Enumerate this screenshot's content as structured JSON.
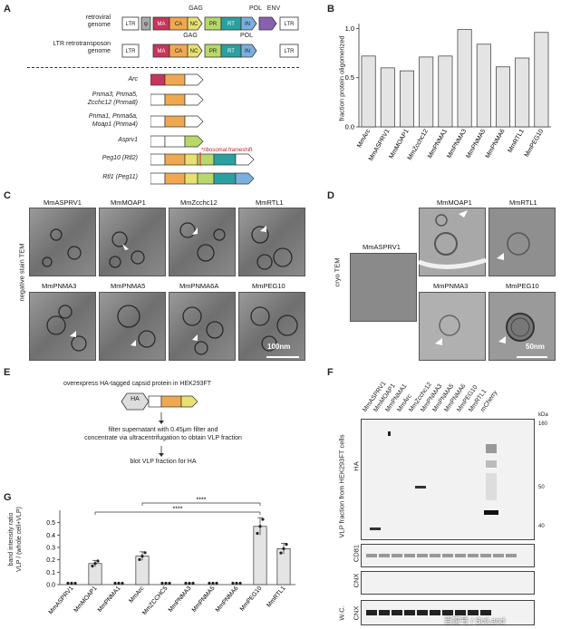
{
  "panels": {
    "A": {
      "letter": "A",
      "retroviral_label": [
        "retroviral",
        "genome"
      ],
      "ltr_label": [
        "LTR retrotransposon",
        "genome"
      ],
      "gag": "GAG",
      "pol": "POL",
      "env": "ENV",
      "ltr": "LTR",
      "psi": "ψ",
      "domains": {
        "ma": "MA",
        "ca": "CA",
        "nc": "NC",
        "pr": "PR",
        "rt": "RT",
        "in": "IN"
      },
      "genes": [
        "Arc",
        "Pnma3, Pnma5,",
        "Zcchc12 (Pnma8)",
        "Pnma1, Pnma6a,",
        "Moap1 (Pnma4)",
        "Asprv1",
        "Peg10 (Rtl2)",
        "Rtl1 (Peg11)"
      ],
      "frameshift": "ribosomal frameshift"
    },
    "B": {
      "letter": "B",
      "ylabel": "fraction protein oligomerized",
      "yticks": [
        "0.0",
        "0.5",
        "1.0"
      ]
    },
    "C": {
      "letter": "C",
      "side_label": "negative stain TEM",
      "images": [
        "MmASPRV1",
        "MmMOAP1",
        "MmZcchc12",
        "MmRTL1",
        "MmPNMA3",
        "MmPNMA5",
        "MmPNMA6A",
        "MmPEG10"
      ],
      "scale": "100nm"
    },
    "D": {
      "letter": "D",
      "side_label": "cryo TEM",
      "images": [
        "MmASPRV1",
        "MmMOAP1",
        "MmRTL1",
        "MmPNMA3",
        "MmPEG10"
      ],
      "scale": "50nm"
    },
    "E": {
      "letter": "E",
      "step1": "overexpress HA-tagged capsid protein in HEK293FT",
      "ha": "HA",
      "step2": [
        "filter supernatant with 0.45μm filter and",
        "concentrate via ultracentrifugation to obtain VLP fraction"
      ],
      "step3": "blot VLP fraction for HA"
    },
    "F": {
      "letter": "F",
      "lanes": [
        "MmASPRV1",
        "MmMOAP1",
        "MmPNMA1",
        "MmArc",
        "MmZcchc12",
        "MmPNMA3",
        "MmPNMA5",
        "MmPNMA6",
        "MmPEG10",
        "MmRTL1",
        "mCherry"
      ],
      "kda": "kDa",
      "markers": [
        "160",
        "50",
        "40"
      ],
      "side_label": "VLP fraction from HEK293FT cells",
      "ha": "HA",
      "cd81": "CD81",
      "cnx": "CNX",
      "wc": "W.C.",
      "cnx2": "CNX"
    },
    "G": {
      "letter": "G",
      "ylabel": [
        "band intensity ratio",
        "VLP / (whole cell+VLP)"
      ],
      "yticks": [
        "0.0",
        "0.1",
        "0.2",
        "0.3",
        "0.4",
        "0.5"
      ],
      "sig1": "****",
      "sig2": "****"
    }
  },
  "watermark": "百家号 / SciLand",
  "chart_data": {
    "type": "bar",
    "categories": [
      "MmArc",
      "MmASPRV1",
      "MmMOAP1",
      "MmZcchc12",
      "MmPNMA1",
      "MmPNMA3",
      "MmPNMA5",
      "MmPNMA6",
      "MmRTL1",
      "MmPEG10"
    ],
    "values": [
      0.72,
      0.6,
      0.57,
      0.71,
      0.72,
      0.99,
      0.84,
      0.61,
      0.7,
      0.96
    ],
    "ylabel": "fraction protein oligomerized",
    "ylim": [
      0,
      1.05
    ]
  },
  "chart_data_G": {
    "type": "bar",
    "categories": [
      "MmASPRV1",
      "MmMOAP1",
      "MmPNMA1",
      "MmArc",
      "MmZCCHC5",
      "MmPNMA3",
      "MmPNMA5",
      "MmPNMA6",
      "MmPEG10",
      "MmRTL1"
    ],
    "values": [
      0.0,
      0.17,
      0.0,
      0.23,
      0.0,
      0.0,
      0.0,
      0.0,
      0.47,
      0.29
    ],
    "ylim": [
      0,
      0.6
    ]
  }
}
